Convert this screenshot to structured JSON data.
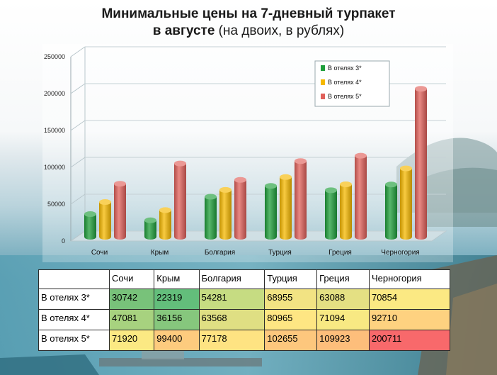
{
  "title": {
    "line1": "Минимальные цены на 7-дневный турпакет",
    "line2_bold": "в августе",
    "line2_rest": " (на двоих, в рублях)"
  },
  "chart_data": {
    "type": "bar",
    "title": "Минимальные цены на 7-дневный турпакет в августе (на двоих, в рублях)",
    "categories": [
      "Сочи",
      "Крым",
      "Болгария",
      "Турция",
      "Греция",
      "Черногория"
    ],
    "series": [
      {
        "name": "В отелях 3*",
        "color": "#1e9e3a",
        "values": [
          30742,
          22319,
          54281,
          68955,
          63088,
          70854
        ]
      },
      {
        "name": "В отелях 4*",
        "color": "#f5b800",
        "values": [
          47081,
          36156,
          63568,
          80965,
          71094,
          92710
        ]
      },
      {
        "name": "В отелях 5*",
        "color": "#e0605a",
        "values": [
          71920,
          99400,
          77178,
          102655,
          109923,
          200711
        ]
      }
    ],
    "y_ticks": [
      "0",
      "50000",
      "100000",
      "150000",
      "200000",
      "250000"
    ],
    "ylim": [
      0,
      250000
    ],
    "legend_position": "top-right",
    "grid": true
  },
  "table": {
    "header": [
      "",
      "Сочи",
      "Крым",
      "Болгария",
      "Турция",
      "Греция",
      "Черногория"
    ],
    "rows": [
      {
        "label": "В отелях 3*",
        "cells": [
          "30742",
          "22319",
          "54281",
          "68955",
          "63088",
          "70854"
        ],
        "colors": [
          "#78c27a",
          "#63be7b",
          "#c6dc82",
          "#f2e383",
          "#e4e083",
          "#fbe983"
        ]
      },
      {
        "label": "В отелях 4*",
        "cells": [
          "47081",
          "36156",
          "63568",
          "80965",
          "71094",
          "92710"
        ],
        "colors": [
          "#a7d27f",
          "#86c77d",
          "#dfdf83",
          "#fee683",
          "#f8e983",
          "#fed280"
        ]
      },
      {
        "label": "В отелях 5*",
        "cells": [
          "71920",
          "99400",
          "77178",
          "102655",
          "109923",
          "200711"
        ],
        "colors": [
          "#fbe983",
          "#fdcb7e",
          "#fee382",
          "#fdc77d",
          "#fdbe7b",
          "#f8696b"
        ]
      }
    ]
  }
}
